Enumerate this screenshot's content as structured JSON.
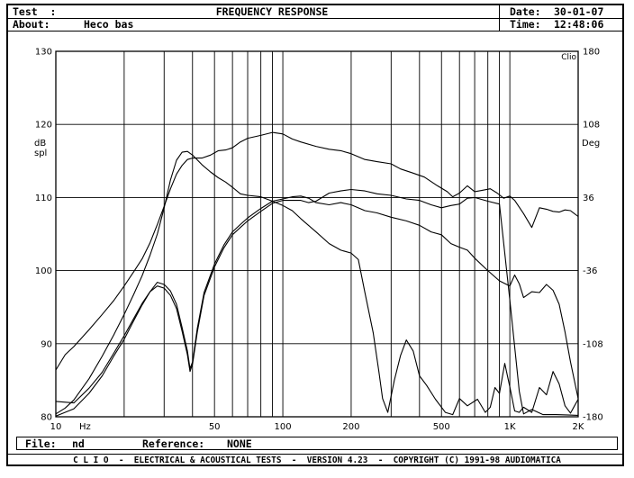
{
  "header": {
    "test_label": "Test  :",
    "about_label": "About:",
    "about_value": "Heco bas",
    "title": "FREQUENCY RESPONSE",
    "date_label": "Date:",
    "date_value": "30-01-07",
    "time_label": "Time:",
    "time_value": "12:48:06"
  },
  "footer": {
    "file_label": "File:",
    "file_value": "nd",
    "reference_label": "Reference:",
    "reference_value": "NONE",
    "banner": "C L I O  -  ELECTRICAL & ACOUSTICAL TESTS  -  VERSION 4.23  -  COPYRIGHT (C) 1991-98 AUDIOMATICA"
  },
  "chart_data": {
    "type": "line",
    "brand": "Clio",
    "grid": true,
    "x_scale": "log",
    "xlim": [
      10,
      2000
    ],
    "y_left_lim": [
      80,
      130
    ],
    "y_right_lim": [
      -180,
      180
    ],
    "y_left_label": [
      "dB",
      "spl"
    ],
    "y_right_label": "Deg",
    "x_unit_label": "Hz",
    "x_ticks": [
      {
        "value": 10,
        "label": "10"
      },
      {
        "value": 50,
        "label": "50"
      },
      {
        "value": 100,
        "label": "100"
      },
      {
        "value": 200,
        "label": "200"
      },
      {
        "value": 500,
        "label": "500"
      },
      {
        "value": 1000,
        "label": "1K"
      },
      {
        "value": 2000,
        "label": "2K"
      }
    ],
    "x_gridlines": [
      20,
      30,
      40,
      50,
      60,
      70,
      80,
      90,
      100,
      200,
      300,
      400,
      500,
      600,
      700,
      800,
      900,
      1000
    ],
    "y_left_ticks": [
      80,
      90,
      100,
      110,
      120,
      130
    ],
    "y_right_ticks": [
      -180,
      -108,
      -36,
      36,
      108,
      180
    ],
    "series": [
      {
        "points": [
          [
            10,
            86.4
          ],
          [
            11,
            88.5
          ],
          [
            12,
            89.6
          ],
          [
            14,
            91.9
          ],
          [
            16,
            94.0
          ],
          [
            18,
            95.9
          ],
          [
            20,
            97.9
          ],
          [
            22,
            99.8
          ],
          [
            24,
            101.6
          ],
          [
            26,
            103.8
          ],
          [
            28,
            106.3
          ],
          [
            30,
            108.8
          ],
          [
            32,
            111.2
          ],
          [
            34,
            113.2
          ],
          [
            36,
            114.4
          ],
          [
            38,
            115.2
          ],
          [
            40,
            115.4
          ],
          [
            44,
            115.4
          ],
          [
            48,
            115.8
          ],
          [
            52,
            116.4
          ],
          [
            56,
            116.5
          ],
          [
            60,
            116.8
          ],
          [
            65,
            117.6
          ],
          [
            70,
            118.1
          ],
          [
            80,
            118.5
          ],
          [
            90,
            118.9
          ],
          [
            100,
            118.7
          ],
          [
            110,
            118.0
          ],
          [
            120,
            117.6
          ],
          [
            140,
            117.0
          ],
          [
            160,
            116.6
          ],
          [
            180,
            116.4
          ],
          [
            200,
            116.0
          ],
          [
            230,
            115.2
          ],
          [
            260,
            114.9
          ],
          [
            300,
            114.6
          ],
          [
            330,
            113.9
          ],
          [
            370,
            113.4
          ],
          [
            420,
            112.8
          ],
          [
            480,
            111.6
          ],
          [
            530,
            110.8
          ],
          [
            560,
            110.1
          ],
          [
            600,
            110.6
          ],
          [
            650,
            111.6
          ],
          [
            700,
            110.8
          ],
          [
            760,
            111.0
          ],
          [
            820,
            111.2
          ],
          [
            880,
            110.6
          ],
          [
            940,
            109.9
          ],
          [
            1000,
            110.2
          ],
          [
            1050,
            109.6
          ],
          [
            1150,
            107.8
          ],
          [
            1250,
            105.9
          ],
          [
            1350,
            108.6
          ],
          [
            1450,
            108.4
          ],
          [
            1550,
            108.1
          ],
          [
            1650,
            108.0
          ],
          [
            1750,
            108.3
          ],
          [
            1850,
            108.2
          ],
          [
            2000,
            107.4
          ]
        ]
      },
      {
        "points": [
          [
            10,
            80.4
          ],
          [
            11,
            81.2
          ],
          [
            12,
            82.3
          ],
          [
            14,
            85.2
          ],
          [
            16,
            88.3
          ],
          [
            18,
            91.2
          ],
          [
            20,
            94.0
          ],
          [
            22,
            96.7
          ],
          [
            24,
            99.3
          ],
          [
            26,
            102.1
          ],
          [
            28,
            105.0
          ],
          [
            30,
            108.6
          ],
          [
            32,
            112.4
          ],
          [
            34,
            115.1
          ],
          [
            36,
            116.2
          ],
          [
            38,
            116.3
          ],
          [
            40,
            115.8
          ],
          [
            44,
            114.5
          ],
          [
            48,
            113.5
          ],
          [
            52,
            112.7
          ],
          [
            56,
            112.1
          ],
          [
            60,
            111.4
          ],
          [
            65,
            110.5
          ],
          [
            70,
            110.3
          ],
          [
            80,
            110.1
          ],
          [
            90,
            109.5
          ],
          [
            100,
            108.9
          ],
          [
            110,
            108.2
          ],
          [
            120,
            107.1
          ],
          [
            140,
            105.3
          ],
          [
            160,
            103.7
          ],
          [
            180,
            102.8
          ],
          [
            200,
            102.4
          ],
          [
            215,
            101.5
          ],
          [
            230,
            97.0
          ],
          [
            250,
            91.5
          ],
          [
            265,
            86.2
          ],
          [
            275,
            82.5
          ],
          [
            290,
            80.6
          ],
          [
            310,
            85.0
          ],
          [
            330,
            88.4
          ],
          [
            350,
            90.5
          ],
          [
            375,
            89.0
          ],
          [
            400,
            85.6
          ],
          [
            430,
            84.3
          ],
          [
            470,
            82.4
          ],
          [
            520,
            80.6
          ],
          [
            560,
            80.3
          ],
          [
            600,
            82.5
          ],
          [
            650,
            81.5
          ],
          [
            720,
            82.4
          ],
          [
            780,
            80.6
          ],
          [
            820,
            81.3
          ],
          [
            860,
            84.0
          ],
          [
            900,
            83.2
          ],
          [
            950,
            87.3
          ],
          [
            1000,
            84.1
          ],
          [
            1050,
            80.8
          ],
          [
            1100,
            80.6
          ],
          [
            1150,
            81.3
          ],
          [
            1250,
            80.6
          ],
          [
            1350,
            84.0
          ],
          [
            1450,
            83.0
          ],
          [
            1550,
            86.2
          ],
          [
            1650,
            84.5
          ],
          [
            1750,
            81.5
          ],
          [
            1850,
            80.5
          ],
          [
            2000,
            82.4
          ]
        ]
      },
      {
        "points": [
          [
            10,
            80.1
          ],
          [
            12,
            81.1
          ],
          [
            14,
            83.2
          ],
          [
            16,
            85.6
          ],
          [
            18,
            88.3
          ],
          [
            20,
            90.6
          ],
          [
            22,
            93.1
          ],
          [
            24,
            95.3
          ],
          [
            26,
            97.1
          ],
          [
            28,
            98.4
          ],
          [
            30,
            98.1
          ],
          [
            32,
            97.2
          ],
          [
            34,
            95.4
          ],
          [
            36,
            92.2
          ],
          [
            38,
            89.0
          ],
          [
            39,
            86.6
          ],
          [
            40,
            87.5
          ],
          [
            42,
            92.1
          ],
          [
            45,
            97.0
          ],
          [
            50,
            100.9
          ],
          [
            55,
            103.5
          ],
          [
            60,
            105.3
          ],
          [
            65,
            106.3
          ],
          [
            70,
            107.2
          ],
          [
            80,
            108.5
          ],
          [
            90,
            109.5
          ],
          [
            100,
            109.8
          ],
          [
            110,
            110.1
          ],
          [
            120,
            110.2
          ],
          [
            130,
            109.9
          ],
          [
            140,
            109.3
          ],
          [
            160,
            109.0
          ],
          [
            180,
            109.3
          ],
          [
            200,
            109.0
          ],
          [
            230,
            108.2
          ],
          [
            260,
            107.9
          ],
          [
            300,
            107.3
          ],
          [
            350,
            106.8
          ],
          [
            400,
            106.2
          ],
          [
            450,
            105.3
          ],
          [
            500,
            104.9
          ],
          [
            550,
            103.7
          ],
          [
            600,
            103.2
          ],
          [
            650,
            102.8
          ],
          [
            700,
            101.7
          ],
          [
            800,
            100.0
          ],
          [
            900,
            98.6
          ],
          [
            1000,
            97.9
          ],
          [
            1050,
            99.4
          ],
          [
            1100,
            98.2
          ],
          [
            1150,
            96.3
          ],
          [
            1250,
            97.1
          ],
          [
            1350,
            97.0
          ],
          [
            1450,
            98.1
          ],
          [
            1550,
            97.3
          ],
          [
            1650,
            95.4
          ],
          [
            1750,
            91.6
          ],
          [
            1850,
            87.5
          ],
          [
            2000,
            82.5
          ]
        ]
      },
      {
        "points": [
          [
            10,
            82.1
          ],
          [
            12,
            81.9
          ],
          [
            14,
            83.9
          ],
          [
            16,
            86.1
          ],
          [
            18,
            88.7
          ],
          [
            20,
            91.1
          ],
          [
            22,
            93.4
          ],
          [
            24,
            95.5
          ],
          [
            26,
            97.1
          ],
          [
            28,
            97.9
          ],
          [
            30,
            97.6
          ],
          [
            32,
            96.6
          ],
          [
            34,
            94.8
          ],
          [
            36,
            91.7
          ],
          [
            38,
            88.5
          ],
          [
            39,
            86.2
          ],
          [
            40,
            87.2
          ],
          [
            42,
            91.6
          ],
          [
            45,
            96.6
          ],
          [
            50,
            100.5
          ],
          [
            55,
            103.1
          ],
          [
            60,
            104.9
          ],
          [
            65,
            105.9
          ],
          [
            70,
            106.8
          ],
          [
            80,
            108.1
          ],
          [
            90,
            109.2
          ],
          [
            100,
            109.6
          ],
          [
            110,
            109.6
          ],
          [
            120,
            109.6
          ],
          [
            130,
            109.3
          ],
          [
            140,
            109.5
          ],
          [
            160,
            110.6
          ],
          [
            180,
            110.9
          ],
          [
            200,
            111.1
          ],
          [
            230,
            110.9
          ],
          [
            260,
            110.5
          ],
          [
            300,
            110.3
          ],
          [
            350,
            109.8
          ],
          [
            400,
            109.6
          ],
          [
            450,
            109.0
          ],
          [
            500,
            108.6
          ],
          [
            550,
            108.9
          ],
          [
            600,
            109.1
          ],
          [
            650,
            109.9
          ],
          [
            700,
            110.0
          ],
          [
            800,
            109.5
          ],
          [
            900,
            109.1
          ],
          [
            1000,
            96.0
          ],
          [
            1100,
            83.5
          ],
          [
            1150,
            80.4
          ],
          [
            1250,
            81.0
          ],
          [
            1400,
            80.3
          ],
          [
            1600,
            80.3
          ],
          [
            2000,
            80.2
          ]
        ]
      }
    ]
  }
}
